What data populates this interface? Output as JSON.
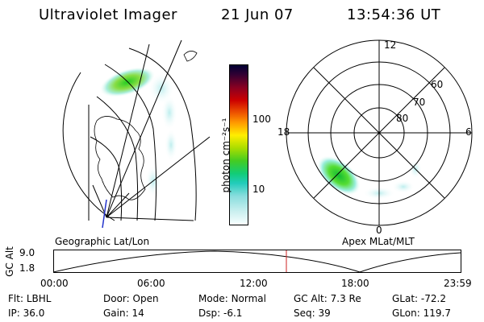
{
  "header": {
    "title": "Ultraviolet Imager",
    "date": "21 Jun 07",
    "time": "13:54:36 UT"
  },
  "colorbar": {
    "unit_label": "photon cm⁻²s⁻¹",
    "ticks": [
      "100",
      "10"
    ]
  },
  "polar_plot": {
    "mlt_labels": {
      "top": "12",
      "left": "18",
      "right": "6",
      "bottom": "0"
    },
    "lat_labels": [
      "60",
      "70",
      "80"
    ]
  },
  "panel_labels": {
    "geographic": "Geographic Lat/Lon",
    "apex": "Apex MLat/MLT"
  },
  "altitude_strip": {
    "label": "GC Alt",
    "y_ticks": [
      "9.0",
      "1.8"
    ],
    "x_ticks": [
      "00:00",
      "06:00",
      "12:00",
      "18:00",
      "23:59"
    ]
  },
  "status": {
    "row1": [
      {
        "label": "Flt:",
        "value": "LBHL"
      },
      {
        "label": "Door:",
        "value": "Open"
      },
      {
        "label": "Mode:",
        "value": "Normal"
      },
      {
        "label": "GC Alt:",
        "value": "7.3 Re"
      },
      {
        "label": "GLat:",
        "value": "-72.2"
      }
    ],
    "row2": [
      {
        "label": "IP:",
        "value": "36.0"
      },
      {
        "label": "Gain:",
        "value": "14"
      },
      {
        "label": "Dsp:",
        "value": "-6.1"
      },
      {
        "label": "Seq:",
        "value": "39"
      },
      {
        "label": "GLon:",
        "value": "119.7"
      }
    ]
  }
}
